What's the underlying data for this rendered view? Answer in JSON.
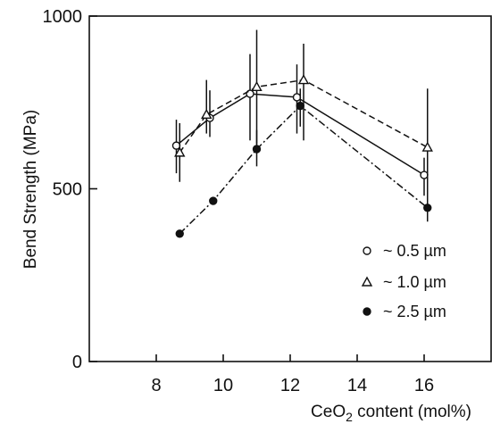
{
  "chart_data": {
    "type": "line",
    "title": "",
    "xlabel": "CeO2 content (mol%)",
    "xlabel_main": "CeO",
    "xlabel_sub": "2",
    "xlabel_rest": " content (mol%)",
    "ylabel": "Bend Strength (MPa)",
    "xlim": [
      6,
      18
    ],
    "ylim": [
      0,
      1000
    ],
    "x_ticks": [
      8,
      10,
      12,
      14,
      16
    ],
    "x_tick_labels": [
      "8",
      "10",
      "12",
      "14",
      "16"
    ],
    "y_ticks": [
      0,
      500,
      1000
    ],
    "y_tick_labels": [
      "0",
      "500",
      "1000"
    ],
    "grid": false,
    "legend_position": "bottom-right",
    "series": [
      {
        "name": "~ 0.5 µm",
        "legend_label": "~ 0.5 µm",
        "marker": "open-circle",
        "line_style": "solid",
        "x": [
          8.6,
          9.6,
          10.8,
          12.2,
          16.0
        ],
        "y": [
          625,
          705,
          775,
          765,
          540
        ],
        "err_low": [
          545,
          650,
          640,
          660,
          480
        ],
        "err_high": [
          700,
          785,
          890,
          860,
          590
        ]
      },
      {
        "name": "~ 1.0 µm",
        "legend_label": "~ 1.0 µm",
        "marker": "open-triangle",
        "line_style": "dashed",
        "x": [
          8.7,
          9.5,
          11.0,
          12.4,
          16.1
        ],
        "y": [
          605,
          715,
          795,
          815,
          620
        ],
        "err_low": [
          520,
          660,
          630,
          640,
          460
        ],
        "err_high": [
          690,
          815,
          960,
          920,
          790
        ]
      },
      {
        "name": "~ 2.5 µm",
        "legend_label": "~ 2.5 µm",
        "marker": "filled-circle",
        "line_style": "dashdot",
        "x": [
          8.7,
          9.7,
          11.0,
          12.3,
          16.1
        ],
        "y": [
          370,
          465,
          615,
          740,
          445
        ],
        "err_low": [
          370,
          465,
          565,
          680,
          405
        ],
        "err_high": [
          370,
          465,
          670,
          790,
          495
        ]
      }
    ]
  }
}
